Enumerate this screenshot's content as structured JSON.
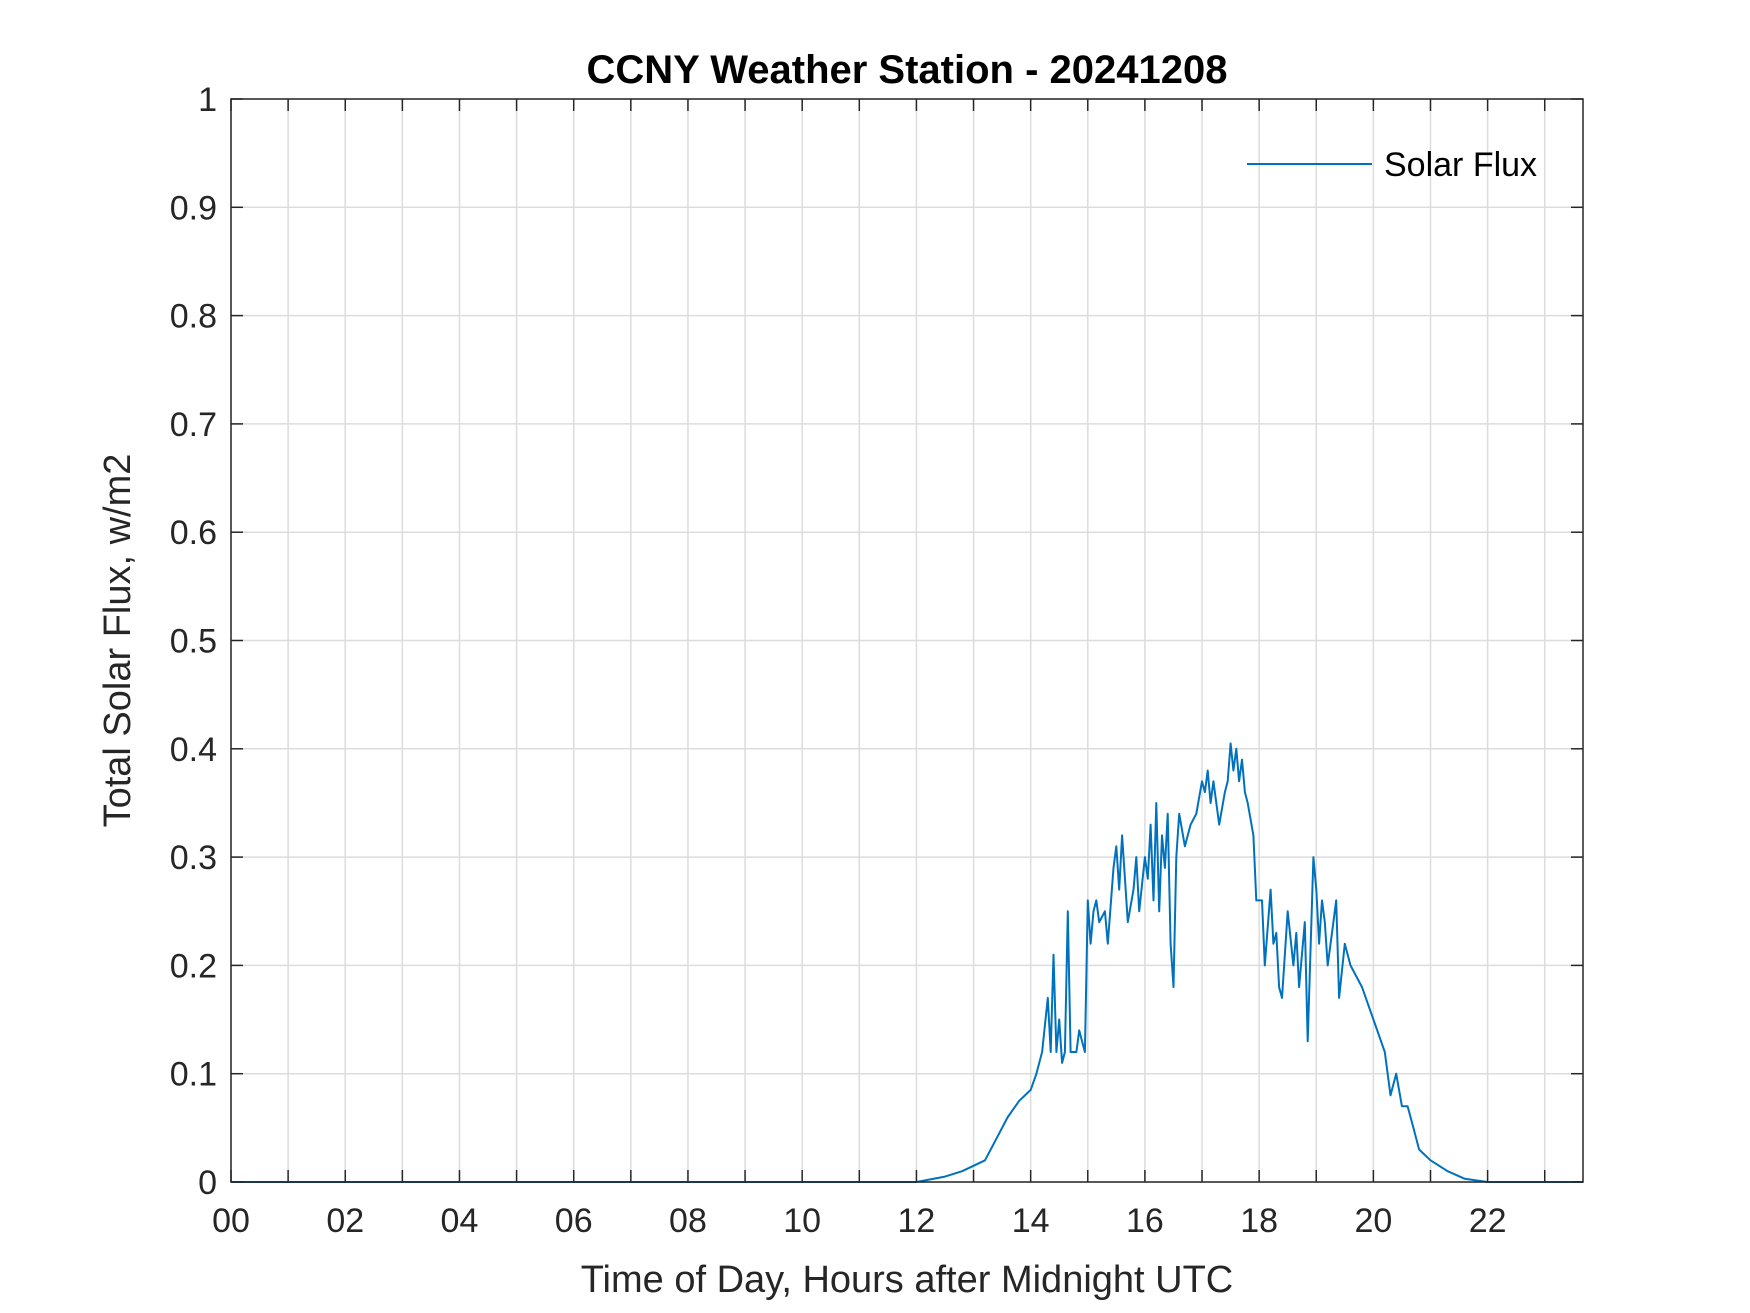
{
  "chart_data": {
    "type": "line",
    "title": "CCNY Weather Station - 20241208",
    "xlabel": "Time of Day, Hours after Midnight UTC",
    "ylabel": "Total Solar Flux, w/m2",
    "xlim": [
      0,
      23.67
    ],
    "ylim": [
      0,
      1
    ],
    "xticks": [
      0,
      2,
      4,
      6,
      8,
      10,
      12,
      14,
      16,
      18,
      20,
      22
    ],
    "xtick_labels": [
      "00",
      "02",
      "04",
      "06",
      "08",
      "10",
      "12",
      "14",
      "16",
      "18",
      "20",
      "22"
    ],
    "minor_xgrid_step": 1,
    "yticks": [
      0,
      0.1,
      0.2,
      0.3,
      0.4,
      0.5,
      0.6,
      0.7,
      0.8,
      0.9,
      1
    ],
    "ytick_labels": [
      "0",
      "0.1",
      "0.2",
      "0.3",
      "0.4",
      "0.5",
      "0.6",
      "0.7",
      "0.8",
      "0.9",
      "1"
    ],
    "grid": true,
    "legend_position": "top-right",
    "series": [
      {
        "name": "Solar Flux",
        "color": "#0072BD",
        "x": [
          0,
          12.0,
          12.5,
          12.8,
          13.0,
          13.2,
          13.4,
          13.6,
          13.8,
          14.0,
          14.1,
          14.2,
          14.3,
          14.35,
          14.4,
          14.45,
          14.5,
          14.55,
          14.6,
          14.65,
          14.7,
          14.8,
          14.85,
          14.95,
          15.0,
          15.05,
          15.1,
          15.15,
          15.2,
          15.3,
          15.35,
          15.45,
          15.5,
          15.55,
          15.6,
          15.7,
          15.8,
          15.85,
          15.9,
          16.0,
          16.05,
          16.1,
          16.15,
          16.2,
          16.25,
          16.3,
          16.35,
          16.4,
          16.45,
          16.5,
          16.55,
          16.6,
          16.7,
          16.8,
          16.9,
          17.0,
          17.05,
          17.1,
          17.15,
          17.2,
          17.3,
          17.4,
          17.45,
          17.5,
          17.55,
          17.6,
          17.65,
          17.7,
          17.75,
          17.8,
          17.9,
          17.95,
          18.05,
          18.1,
          18.2,
          18.25,
          18.3,
          18.35,
          18.4,
          18.5,
          18.6,
          18.65,
          18.7,
          18.8,
          18.85,
          18.95,
          19.0,
          19.05,
          19.1,
          19.15,
          19.2,
          19.3,
          19.35,
          19.4,
          19.5,
          19.6,
          19.8,
          20.0,
          20.2,
          20.3,
          20.4,
          20.5,
          20.6,
          20.7,
          20.8,
          21.0,
          21.3,
          21.6,
          22.0,
          23.67
        ],
        "y": [
          0,
          0,
          0.005,
          0.01,
          0.015,
          0.02,
          0.04,
          0.06,
          0.075,
          0.085,
          0.1,
          0.12,
          0.17,
          0.12,
          0.21,
          0.12,
          0.15,
          0.11,
          0.12,
          0.25,
          0.12,
          0.12,
          0.14,
          0.12,
          0.26,
          0.22,
          0.25,
          0.26,
          0.24,
          0.25,
          0.22,
          0.29,
          0.31,
          0.27,
          0.32,
          0.24,
          0.27,
          0.3,
          0.25,
          0.3,
          0.28,
          0.33,
          0.26,
          0.35,
          0.25,
          0.32,
          0.29,
          0.34,
          0.22,
          0.18,
          0.3,
          0.34,
          0.31,
          0.33,
          0.34,
          0.37,
          0.36,
          0.38,
          0.35,
          0.37,
          0.33,
          0.36,
          0.37,
          0.405,
          0.38,
          0.4,
          0.37,
          0.39,
          0.36,
          0.35,
          0.32,
          0.26,
          0.26,
          0.2,
          0.27,
          0.22,
          0.23,
          0.18,
          0.17,
          0.25,
          0.2,
          0.23,
          0.18,
          0.24,
          0.13,
          0.3,
          0.27,
          0.22,
          0.26,
          0.24,
          0.2,
          0.24,
          0.26,
          0.17,
          0.22,
          0.2,
          0.18,
          0.15,
          0.12,
          0.08,
          0.1,
          0.07,
          0.07,
          0.05,
          0.03,
          0.02,
          0.01,
          0.003,
          0,
          0
        ]
      }
    ]
  }
}
